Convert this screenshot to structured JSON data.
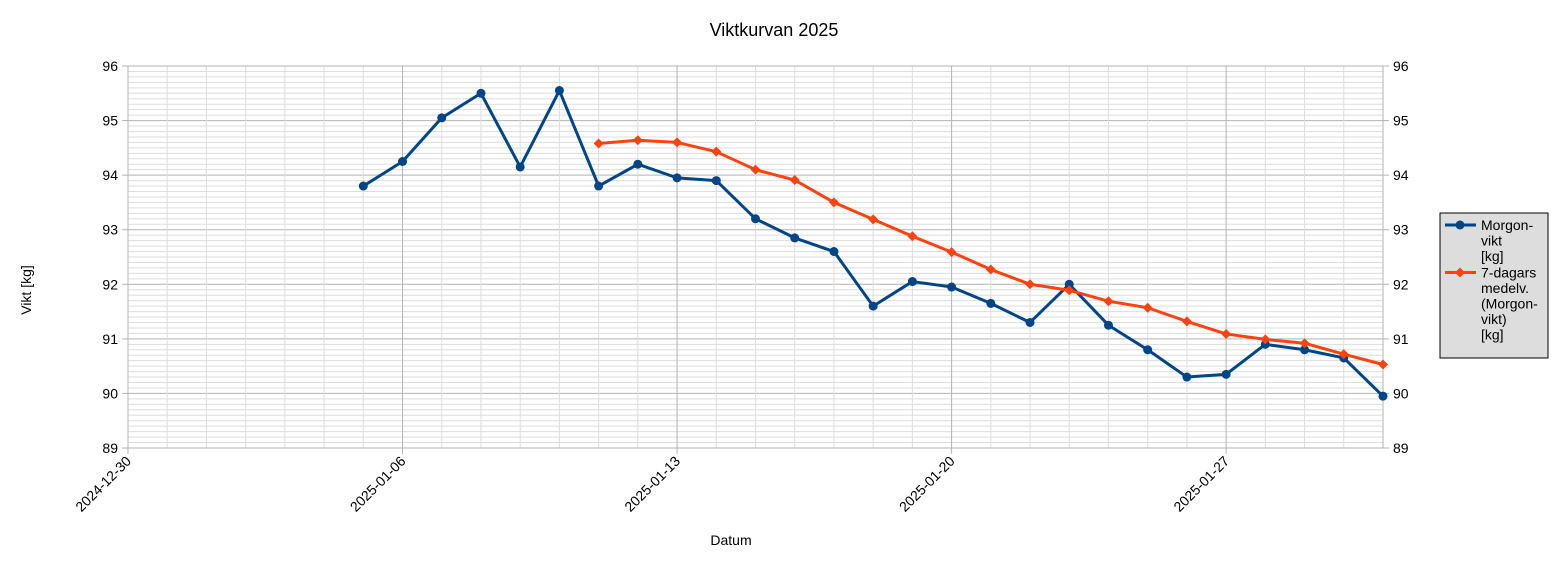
{
  "chart_data": {
    "type": "line",
    "title": "Viktkurvan 2025",
    "xlabel": "Datum",
    "ylabel": "Vikt [kg]",
    "ylim": [
      89,
      96
    ],
    "y_ticks": [
      "89",
      "90",
      "91",
      "92",
      "93",
      "94",
      "95",
      "96"
    ],
    "xlim": [
      "2024-12-30",
      "2025-01-31"
    ],
    "x_tick_labels": [
      "2024-12-30",
      "2025-01-06",
      "2025-01-13",
      "2025-01-20",
      "2025-01-27"
    ],
    "grid": true,
    "legend_position": "right",
    "series": [
      {
        "name_lines": [
          "Morgon-",
          "vikt",
          "[kg]"
        ],
        "color": "#004586",
        "marker": "circle",
        "points": [
          [
            "2025-01-05",
            93.8
          ],
          [
            "2025-01-06",
            94.25
          ],
          [
            "2025-01-07",
            95.05
          ],
          [
            "2025-01-08",
            95.5
          ],
          [
            "2025-01-09",
            94.15
          ],
          [
            "2025-01-10",
            95.55
          ],
          [
            "2025-01-11",
            93.8
          ],
          [
            "2025-01-12",
            94.2
          ],
          [
            "2025-01-13",
            93.95
          ],
          [
            "2025-01-14",
            93.9
          ],
          [
            "2025-01-15",
            93.2
          ],
          [
            "2025-01-16",
            92.85
          ],
          [
            "2025-01-17",
            92.6
          ],
          [
            "2025-01-18",
            91.6
          ],
          [
            "2025-01-19",
            92.05
          ],
          [
            "2025-01-20",
            91.95
          ],
          [
            "2025-01-21",
            91.65
          ],
          [
            "2025-01-22",
            91.3
          ],
          [
            "2025-01-23",
            92.0
          ],
          [
            "2025-01-24",
            91.25
          ],
          [
            "2025-01-25",
            90.8
          ],
          [
            "2025-01-26",
            90.3
          ],
          [
            "2025-01-27",
            90.35
          ],
          [
            "2025-01-28",
            90.9
          ],
          [
            "2025-01-29",
            90.8
          ],
          [
            "2025-01-30",
            90.65
          ],
          [
            "2025-01-31",
            89.95
          ]
        ]
      },
      {
        "name_lines": [
          "7-dagars",
          "medelv.",
          "(Morgon-",
          "vikt)",
          "[kg]"
        ],
        "color": "#ff420e",
        "marker": "diamond",
        "points": [
          [
            "2025-01-11",
            94.58
          ],
          [
            "2025-01-12",
            94.64
          ],
          [
            "2025-01-13",
            94.6
          ],
          [
            "2025-01-14",
            94.43
          ],
          [
            "2025-01-15",
            94.1
          ],
          [
            "2025-01-16",
            93.91
          ],
          [
            "2025-01-17",
            93.5
          ],
          [
            "2025-01-18",
            93.19
          ],
          [
            "2025-01-19",
            92.88
          ],
          [
            "2025-01-20",
            92.59
          ],
          [
            "2025-01-21",
            92.27
          ],
          [
            "2025-01-22",
            92.0
          ],
          [
            "2025-01-23",
            91.89
          ],
          [
            "2025-01-24",
            91.69
          ],
          [
            "2025-01-25",
            91.57
          ],
          [
            "2025-01-26",
            91.32
          ],
          [
            "2025-01-27",
            91.09
          ],
          [
            "2025-01-28",
            90.99
          ],
          [
            "2025-01-29",
            90.92
          ],
          [
            "2025-01-30",
            90.72
          ],
          [
            "2025-01-31",
            90.53
          ]
        ]
      }
    ]
  }
}
